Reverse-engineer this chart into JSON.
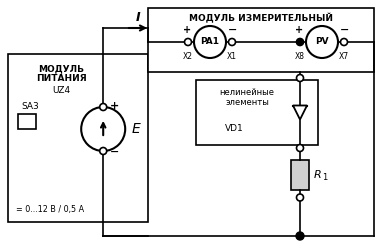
{
  "title": "МОДУЛЬ ИЗМЕРИТЕЛЬНЫЙ",
  "power_module_line1": "МОДУЛЬ",
  "power_module_line2": "ПИТАНИЯ",
  "uz4": "UZ4",
  "sa3": "SA3",
  "voltage": "= 0...12 В / 0,5 А",
  "nonlinear_line1": "нелинейные",
  "nonlinear_line2": "элементы",
  "vd1": "VD1",
  "r1": "R",
  "r1_sub": "1",
  "e_label": "E",
  "i_label": "I",
  "pa1": "PA1",
  "pv": "PV",
  "x2": "X2",
  "x1": "X1",
  "x8": "X8",
  "x7": "X7",
  "bg": "#ffffff",
  "lc": "#000000"
}
